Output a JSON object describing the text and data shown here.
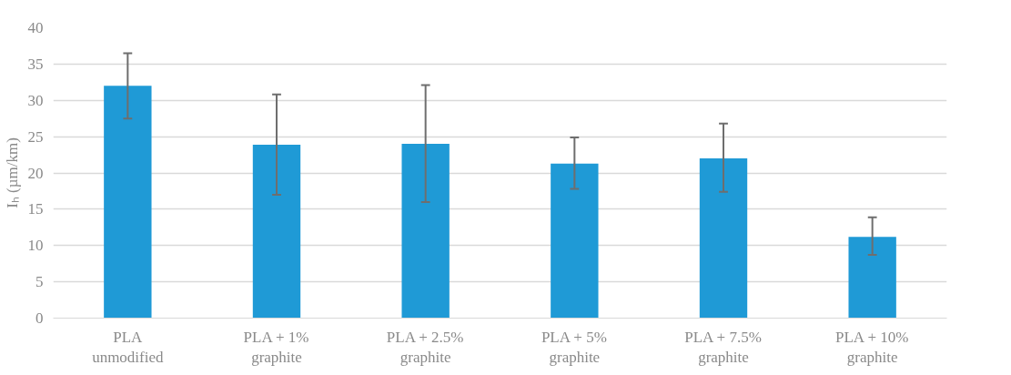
{
  "chart_data": {
    "type": "bar",
    "ylabel": "Iₕ (µm/km)",
    "categories": [
      "PLA\nunmodified",
      "PLA + 1%\ngraphite",
      "PLA + 2.5%\ngraphite",
      "PLA + 5%\ngraphite",
      "PLA + 7.5%\ngraphite",
      "PLA + 10%\ngraphite"
    ],
    "values": [
      32,
      23.9,
      24,
      21.3,
      22,
      11.2
    ],
    "errors": [
      [
        27.5,
        36.5
      ],
      [
        17,
        30.8
      ],
      [
        16,
        32.1
      ],
      [
        17.8,
        24.9
      ],
      [
        17.4,
        26.8
      ],
      [
        8.7,
        13.9
      ]
    ],
    "color": "#1f9ad6",
    "ylim": [
      0,
      40
    ],
    "yticks": [
      0,
      5,
      10,
      15,
      20,
      25,
      30,
      35,
      40
    ],
    "grid": "y"
  }
}
